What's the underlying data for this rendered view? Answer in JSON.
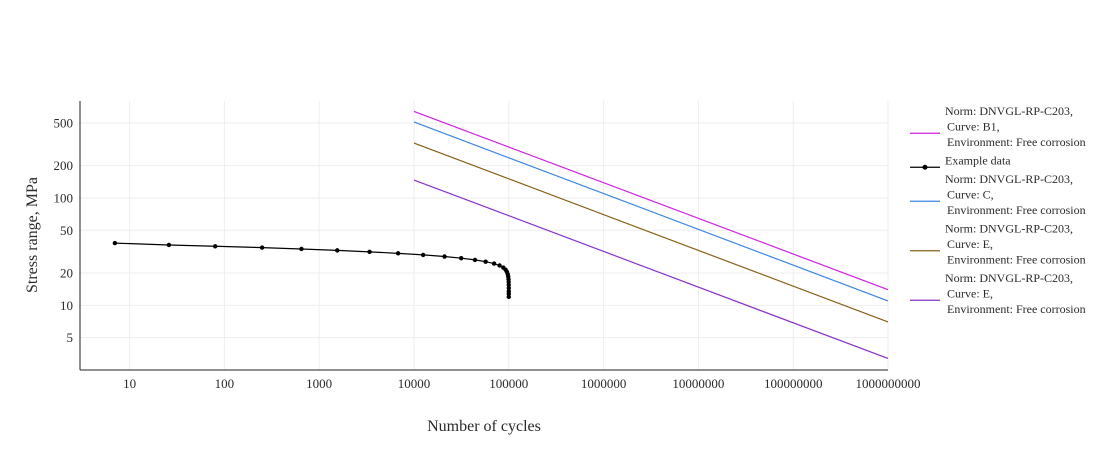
{
  "chart_data": {
    "type": "line",
    "title": "",
    "xlabel": "Number of cycles",
    "ylabel": "Stress range, MPa",
    "x_scale": "log",
    "y_scale": "log",
    "xlim": [
      3,
      1000000000
    ],
    "ylim": [
      2.5,
      800
    ],
    "x_ticks": [
      10,
      100,
      1000,
      10000,
      100000,
      1000000,
      10000000,
      100000000,
      1000000000
    ],
    "x_tick_labels": [
      "10",
      "100",
      "1000",
      "10000",
      "100000",
      "1000000",
      "10000000",
      "100000000",
      "1000000000"
    ],
    "y_ticks": [
      5,
      10,
      20,
      50,
      100,
      200,
      500
    ],
    "y_tick_labels": [
      "5",
      "10",
      "20",
      "50",
      "100",
      "200",
      "500"
    ],
    "grid": true,
    "legend_position": "right",
    "series": [
      {
        "name": "Norm: DNVGL-RP-C203,\nCurve: B1,\nEnvironment: Free corrosion",
        "color": "#d020e0",
        "mode": "lines",
        "x": [
          10000,
          1000000000
        ],
        "y": [
          640,
          14
        ]
      },
      {
        "name": "Example data",
        "color": "#000000",
        "mode": "lines+markers",
        "x": [
          7,
          26,
          80,
          250,
          650,
          1550,
          3400,
          6800,
          12500,
          21000,
          31500,
          44000,
          57000,
          70000,
          80000,
          87500,
          92500,
          95500,
          97500,
          98700,
          99300,
          99700,
          99900,
          100000,
          100000,
          100000,
          100000
        ],
        "y": [
          38,
          36.5,
          35.5,
          34.5,
          33.5,
          32.5,
          31.5,
          30.5,
          29.5,
          28.5,
          27.5,
          26.5,
          25.5,
          24.5,
          23.5,
          22.5,
          21.5,
          20.5,
          19.5,
          18.5,
          17.5,
          16.5,
          15.5,
          14.5,
          13.5,
          12.8,
          12
        ]
      },
      {
        "name": "Norm: DNVGL-RP-C203,\nCurve: C,\nEnvironment: Free corrosion",
        "color": "#3a85e0",
        "mode": "lines",
        "x": [
          10000,
          1000000000
        ],
        "y": [
          510,
          11
        ]
      },
      {
        "name": "Norm: DNVGL-RP-C203,\nCurve: E,\nEnvironment: Free corrosion",
        "color": "#866016",
        "mode": "lines",
        "x": [
          10000,
          1000000000
        ],
        "y": [
          325,
          7
        ]
      },
      {
        "name": "Norm: DNVGL-RP-C203,\nCurve: E,\nEnvironment: Free corrosion",
        "color": "#8a30c8",
        "mode": "lines",
        "x": [
          10000,
          1000000000
        ],
        "y": [
          147,
          3.2
        ]
      }
    ]
  }
}
